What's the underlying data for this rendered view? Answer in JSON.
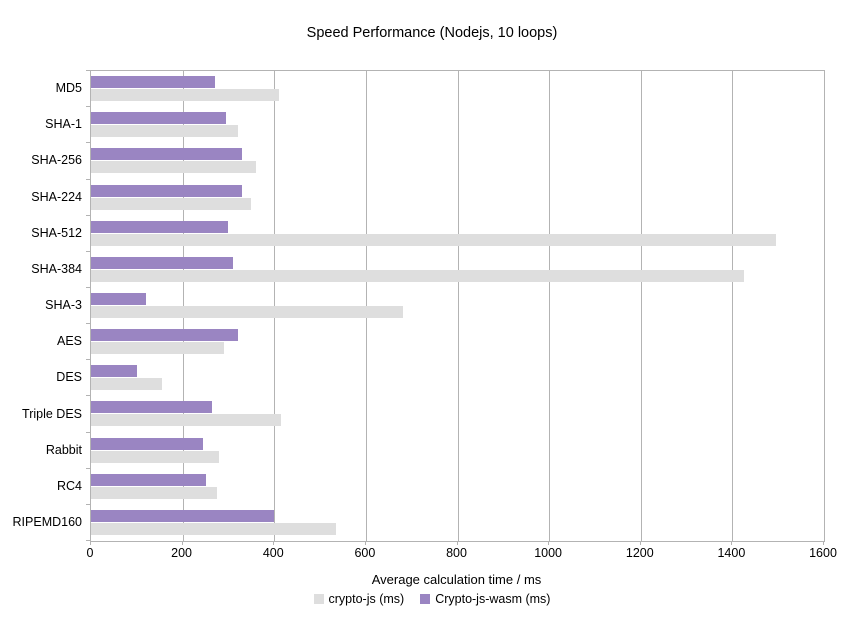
{
  "title": "Speed Performance (Nodejs, 10 loops)",
  "chart_data": {
    "type": "bar",
    "orientation": "horizontal",
    "title": "Speed Performance (Nodejs, 10 loops)",
    "xlabel": "Average calculation time / ms",
    "xlim": [
      0,
      1600
    ],
    "xticks": [
      0,
      200,
      400,
      600,
      800,
      1000,
      1200,
      1400,
      1600
    ],
    "grid": true,
    "legend_position": "bottom",
    "categories": [
      "MD5",
      "SHA-1",
      "SHA-256",
      "SHA-224",
      "SHA-512",
      "SHA-384",
      "SHA-3",
      "AES",
      "DES",
      "Triple DES",
      "Rabbit",
      "RC4",
      "RIPEMD160"
    ],
    "series": [
      {
        "name": "crypto-js (ms)",
        "color": "#dedede",
        "values": [
          410,
          320,
          360,
          350,
          1495,
          1425,
          680,
          290,
          155,
          415,
          280,
          275,
          535
        ]
      },
      {
        "name": "Crypto-js-wasm (ms)",
        "color": "#9a85c2",
        "values": [
          270,
          295,
          330,
          330,
          300,
          310,
          120,
          320,
          100,
          265,
          245,
          250,
          400
        ]
      }
    ]
  },
  "colors": {
    "frame": "#b3b3b3",
    "gridline": "#b3b3b3",
    "text": "#000000",
    "background": "#ffffff"
  }
}
